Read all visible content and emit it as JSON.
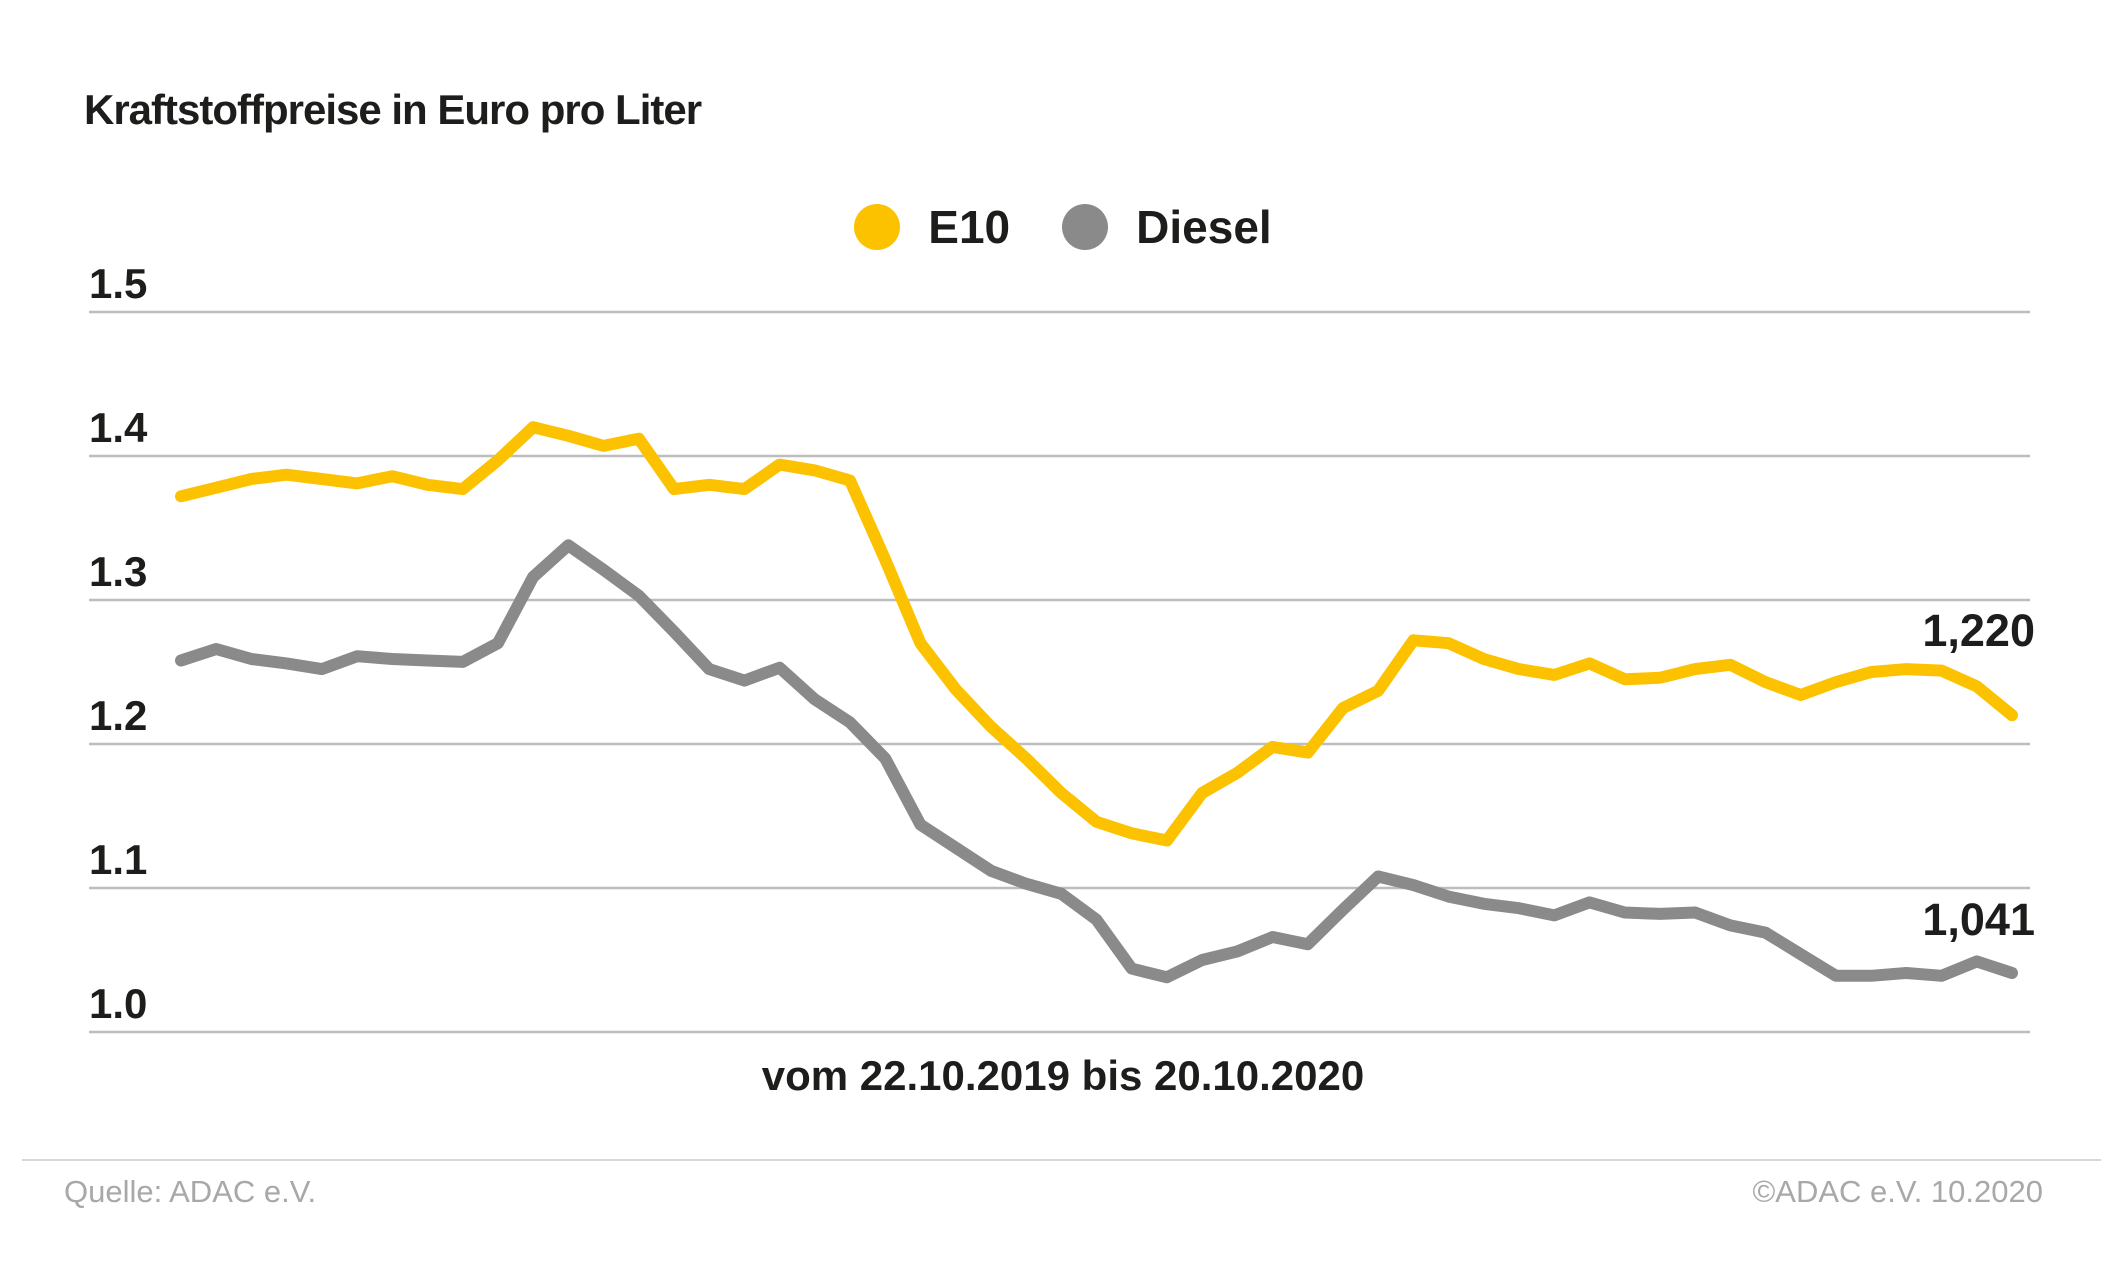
{
  "title": "Kraftstoffpreise in Euro pro Liter",
  "footer": {
    "source": "Quelle: ADAC e.V.",
    "copyright": "©ADAC e.V. 10.2020"
  },
  "colors": {
    "e10": "#FCC200",
    "diesel": "#8A8A8A",
    "text": "#1d1d1b",
    "gridline": "#bdbdbd",
    "footer_text": "#a8a8a8"
  },
  "chart_data": {
    "type": "line",
    "title": "Kraftstoffpreise in Euro pro Liter",
    "x_range_label": "vom 22.10.2019 bis 20.10.2020",
    "x_start": "22.10.2019",
    "x_end": "20.10.2020",
    "ylabel": "Euro pro Liter",
    "ylim": [
      1.0,
      1.5
    ],
    "y_ticks": [
      1.5,
      1.4,
      1.3,
      1.2,
      1.1,
      1.0
    ],
    "y_tick_labels": [
      "1.5",
      "1.4",
      "1.3",
      "1.2",
      "1.1",
      "1.0"
    ],
    "grid": "horizontal",
    "legend_position": "top-center",
    "series": [
      {
        "name": "E10",
        "color": "#FCC200",
        "end_label": "1,220",
        "end_value": 1.22,
        "values": [
          1.372,
          1.378,
          1.384,
          1.387,
          1.384,
          1.381,
          1.386,
          1.38,
          1.377,
          1.397,
          1.42,
          1.414,
          1.407,
          1.412,
          1.377,
          1.38,
          1.377,
          1.394,
          1.39,
          1.383,
          1.328,
          1.27,
          1.238,
          1.212,
          1.19,
          1.166,
          1.146,
          1.138,
          1.133,
          1.166,
          1.18,
          1.198,
          1.194,
          1.225,
          1.237,
          1.272,
          1.27,
          1.259,
          1.252,
          1.248,
          1.256,
          1.245,
          1.246,
          1.252,
          1.255,
          1.243,
          1.234,
          1.243,
          1.25,
          1.252,
          1.251,
          1.24,
          1.22
        ]
      },
      {
        "name": "Diesel",
        "color": "#8A8A8A",
        "end_label": "1,041",
        "end_value": 1.041,
        "values": [
          1.258,
          1.266,
          1.259,
          1.256,
          1.252,
          1.261,
          1.259,
          1.258,
          1.257,
          1.27,
          1.316,
          1.338,
          1.321,
          1.303,
          1.278,
          1.252,
          1.244,
          1.253,
          1.231,
          1.215,
          1.19,
          1.144,
          1.128,
          1.112,
          1.103,
          1.096,
          1.078,
          1.044,
          1.038,
          1.05,
          1.056,
          1.066,
          1.061,
          1.085,
          1.108,
          1.102,
          1.094,
          1.089,
          1.086,
          1.081,
          1.09,
          1.083,
          1.082,
          1.083,
          1.074,
          1.069,
          1.054,
          1.039,
          1.039,
          1.041,
          1.039,
          1.049,
          1.041
        ]
      }
    ]
  }
}
